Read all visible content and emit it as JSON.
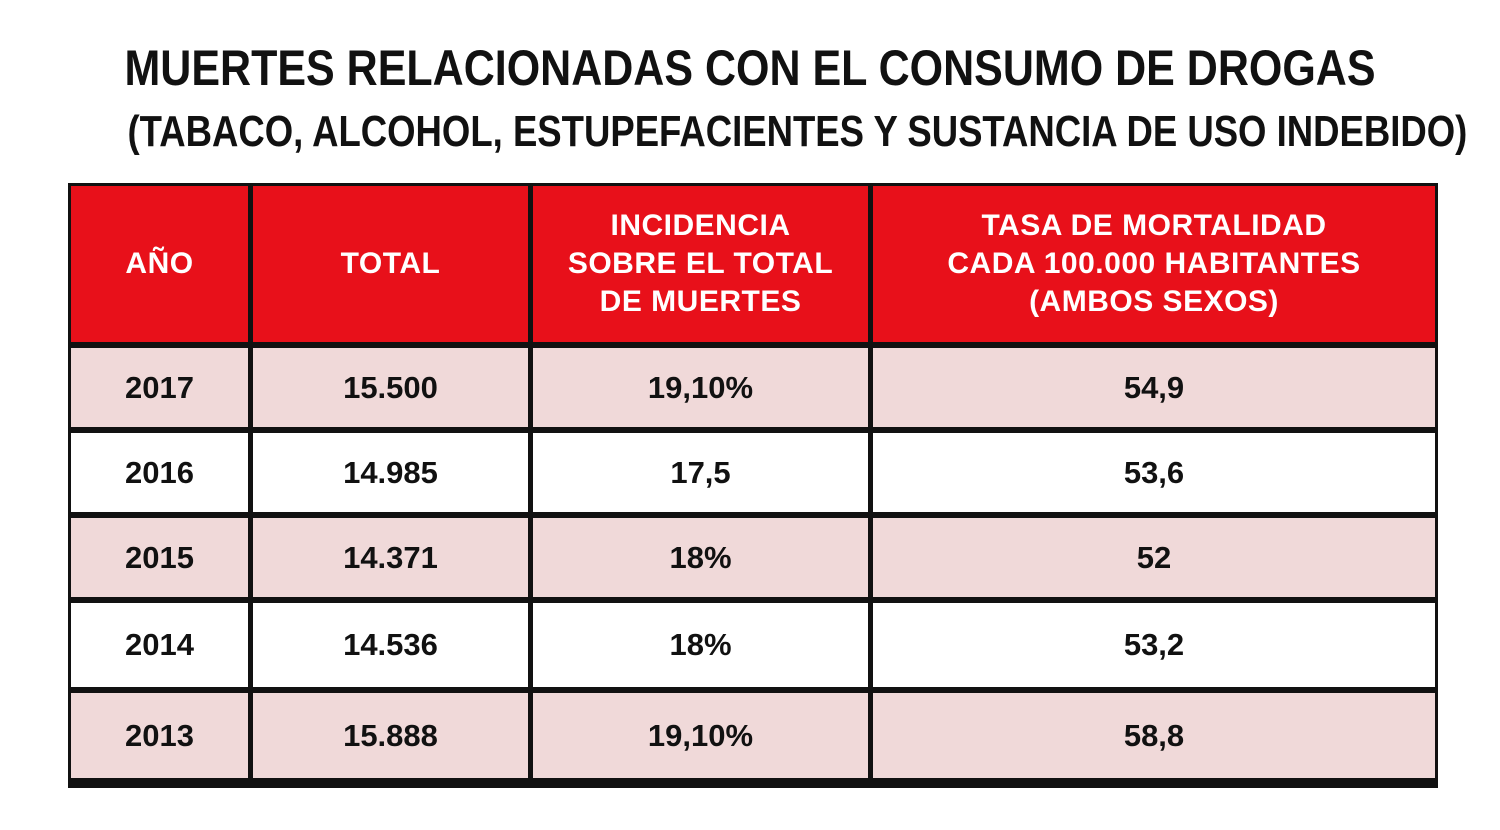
{
  "title": "MUERTES RELACIONADAS CON EL CONSUMO DE DROGAS",
  "subtitle": "(TABACO, ALCOHOL,  ESTUPEFACIENTES Y SUSTANCIA DE USO INDEBIDO)",
  "colors": {
    "header_bg": "#e8101a",
    "header_text": "#ffffff",
    "shaded_row": "#f0d9d9",
    "plain_row": "#ffffff",
    "border": "#111111"
  },
  "table": {
    "headers": [
      "AÑO",
      "TOTAL",
      "INCIDENCIA SOBRE EL TOTAL DE MUERTES",
      "TASA DE MORTALIDAD CADA 100.000 HABITANTES (AMBOS SEXOS)"
    ],
    "header_lines": {
      "col3": [
        "INCIDENCIA",
        "SOBRE EL TOTAL",
        "DE MUERTES"
      ],
      "col4": [
        "TASA DE MORTALIDAD",
        "CADA 100.000 HABITANTES",
        "(AMBOS SEXOS)"
      ]
    },
    "rows": [
      [
        "2017",
        "15.500",
        "19,10%",
        "54,9"
      ],
      [
        "2016",
        "14.985",
        "17,5",
        "53,6"
      ],
      [
        "2015",
        "14.371",
        "18%",
        "52"
      ],
      [
        "2014",
        "14.536",
        "18%",
        "53,2"
      ],
      [
        "2013",
        "15.888",
        "19,10%",
        "58,8"
      ]
    ]
  }
}
